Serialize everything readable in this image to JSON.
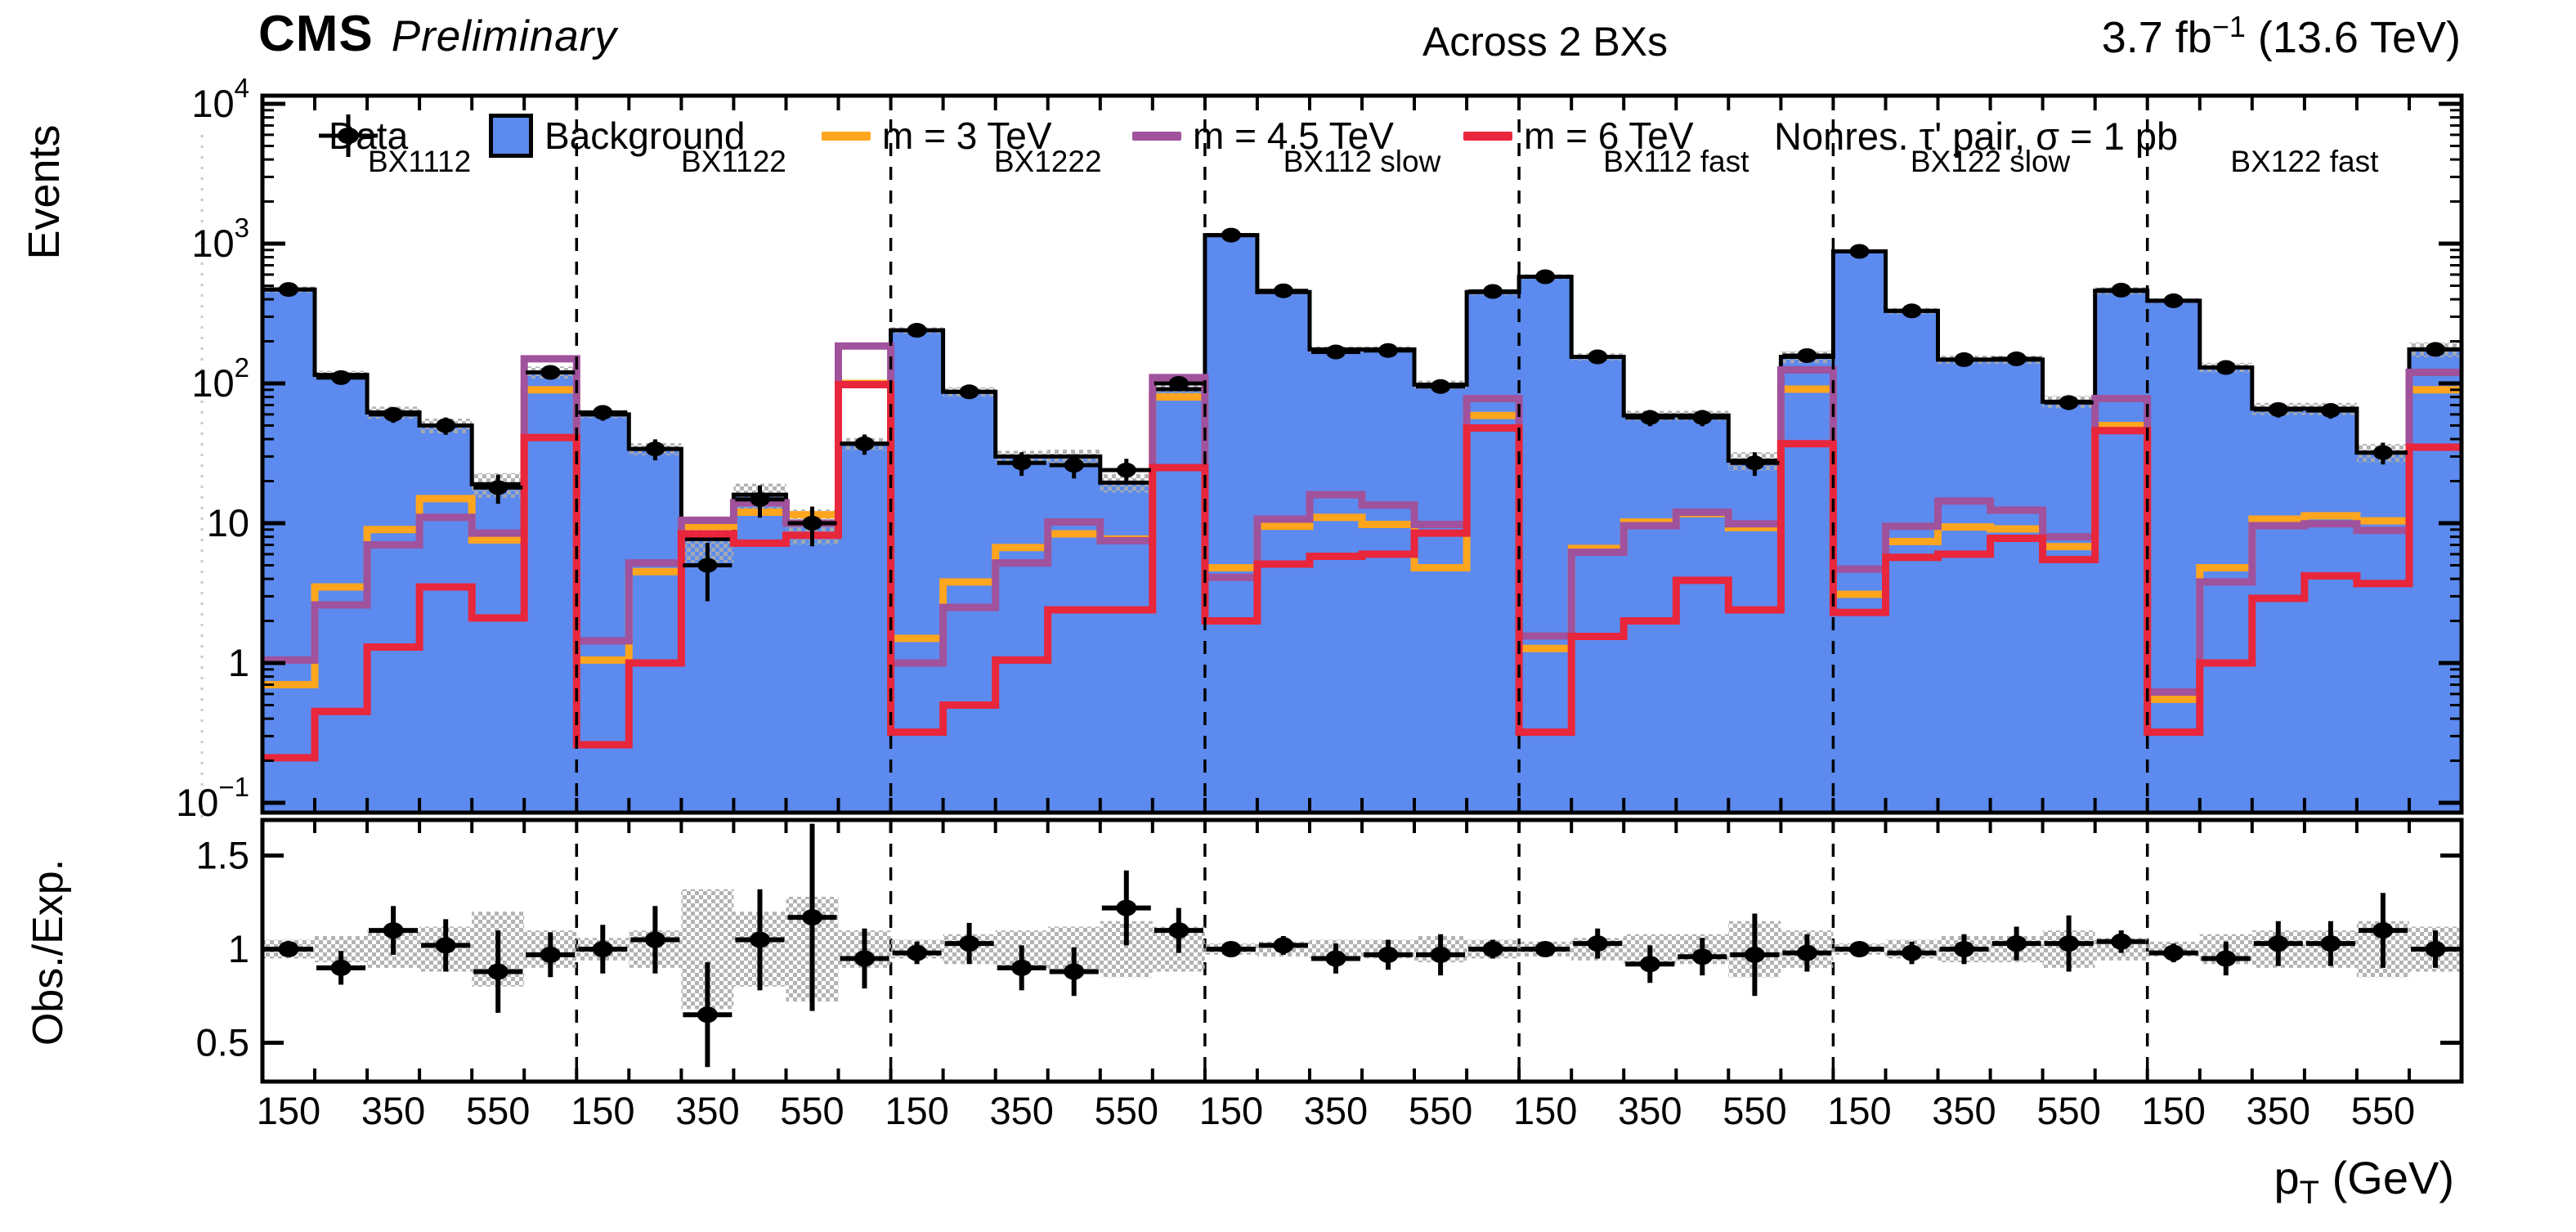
{
  "header": {
    "experiment": "CMS",
    "preliminary": "Preliminary",
    "center": "Across 2 BXs",
    "lumi_value": "3.7 fb",
    "lumi_exponent": "−1",
    "energy": " (13.6 TeV)"
  },
  "axes": {
    "y_label": "Events",
    "ratio_label": "Obs./Exp.",
    "x_label_p": "p",
    "x_label_sub": "T",
    "x_label_units": " (GeV)",
    "x_tick_labels": [
      "150",
      "350",
      "550"
    ],
    "y_tick_exponents": [
      4,
      3,
      2,
      1,
      0,
      -1
    ],
    "ratio_tick_values": [
      1.5,
      1.0,
      0.5
    ],
    "ratio_tick_labels": [
      "1.5",
      "1",
      "0.5"
    ]
  },
  "legend": {
    "data": "Data",
    "background": "Background",
    "m3": "m = 3 TeV",
    "m45": "m = 4.5 TeV",
    "m6": "m = 6 TeV",
    "note": "Nonres. τ' pair, σ = 1 pb"
  },
  "colors": {
    "background_fill": "#5C8AEE",
    "m3": "#FFA51E",
    "m45": "#A0529C",
    "m6": "#E8263C",
    "hatch": "#ABABAB",
    "marker": "#000000"
  },
  "chart_data": {
    "type": "bar",
    "subtype": "stepped histograms on log-y with signal overlays and ratio panel",
    "title": "Across 2 BXs",
    "xlabel": "pT (GeV)",
    "ylabel": "Events",
    "ratio_ylabel": "Obs./Exp.",
    "ylim_main": [
      0.086,
      11400
    ],
    "ylim_ratio": [
      0.28,
      1.68
    ],
    "x_bin_edges_gev": [
      100,
      200,
      300,
      400,
      500,
      600,
      700
    ],
    "series_names": [
      "Data",
      "Background",
      "m = 3 TeV",
      "m = 4.5 TeV",
      "m = 6 TeV"
    ],
    "regions": [
      {
        "label": "BX1112",
        "background": [
          470,
          115,
          62,
          50,
          19,
          120
        ],
        "data": [
          470,
          110,
          60,
          50,
          18,
          120
        ],
        "m3": [
          0.7,
          3.5,
          9,
          15,
          7.6,
          90
        ],
        "m45": [
          1.05,
          2.6,
          7,
          11,
          8.5,
          150
        ],
        "m6": [
          0.21,
          0.45,
          1.3,
          3.5,
          2.1,
          41
        ],
        "ratio": [
          1.0,
          0.9,
          1.1,
          1.02,
          0.88,
          0.97
        ],
        "ratio_err": [
          0.04,
          0.09,
          0.13,
          0.14,
          0.22,
          0.12
        ],
        "band_frac": [
          0.05,
          0.07,
          0.1,
          0.12,
          0.2,
          0.1
        ]
      },
      {
        "label": "BX1122",
        "background": [
          60,
          34,
          7.7,
          16,
          9.8,
          37
        ],
        "data": [
          62,
          34,
          5,
          14.8,
          10,
          37
        ],
        "m3": [
          1.05,
          4.5,
          9.5,
          12,
          11.5,
          100
        ],
        "m45": [
          1.44,
          5.2,
          10.5,
          14,
          10,
          185
        ],
        "m6": [
          0.26,
          1.0,
          8.4,
          7.2,
          8.2,
          98
        ],
        "ratio": [
          1.0,
          1.05,
          0.65,
          1.05,
          1.17,
          0.95
        ],
        "ratio_err": [
          0.13,
          0.18,
          0.28,
          0.27,
          0.5,
          0.16
        ],
        "band_frac": [
          0.06,
          0.1,
          0.32,
          0.2,
          0.28,
          0.1
        ]
      },
      {
        "label": "BX1222",
        "background": [
          240,
          87,
          30,
          30,
          19.5,
          91
        ],
        "data": [
          240,
          87,
          27,
          26,
          24,
          100
        ],
        "m3": [
          1.5,
          3.8,
          6.7,
          8.4,
          7.7,
          80
        ],
        "m45": [
          1.0,
          2.5,
          5.2,
          10.2,
          7.5,
          110
        ],
        "m6": [
          0.32,
          0.5,
          1.05,
          2.4,
          2.4,
          25
        ],
        "ratio": [
          0.98,
          1.03,
          0.9,
          0.88,
          1.22,
          1.1
        ],
        "ratio_err": [
          0.06,
          0.11,
          0.12,
          0.13,
          0.2,
          0.12
        ],
        "band_frac": [
          0.05,
          0.08,
          0.1,
          0.12,
          0.15,
          0.12
        ]
      },
      {
        "label": "BX112 slow",
        "background": [
          1150,
          450,
          175,
          175,
          98,
          450
        ],
        "data": [
          1150,
          460,
          168,
          172,
          95,
          455
        ],
        "m3": [
          4.8,
          9.5,
          11,
          9.8,
          4.8,
          59
        ],
        "m45": [
          4.1,
          10.7,
          16,
          13.5,
          9.8,
          78
        ],
        "m6": [
          2.0,
          5.1,
          5.8,
          6.0,
          8.5,
          48
        ],
        "ratio": [
          1.0,
          1.02,
          0.95,
          0.97,
          0.97,
          1.0
        ],
        "ratio_err": [
          0.03,
          0.05,
          0.08,
          0.08,
          0.11,
          0.05
        ],
        "band_frac": [
          0.03,
          0.04,
          0.05,
          0.05,
          0.07,
          0.05
        ]
      },
      {
        "label": "BX112 fast",
        "background": [
          580,
          155,
          59,
          59,
          28,
          155
        ],
        "data": [
          580,
          155,
          57,
          57,
          27,
          158
        ],
        "m3": [
          1.27,
          6.6,
          10.2,
          11.7,
          9.3,
          91
        ],
        "m45": [
          1.56,
          6.2,
          9.6,
          12,
          9.9,
          125
        ],
        "m6": [
          0.32,
          1.55,
          2.0,
          3.9,
          2.4,
          37
        ],
        "ratio": [
          1.0,
          1.03,
          0.92,
          0.96,
          0.97,
          0.98
        ],
        "ratio_err": [
          0.04,
          0.08,
          0.1,
          0.1,
          0.22,
          0.1
        ],
        "band_frac": [
          0.04,
          0.06,
          0.08,
          0.08,
          0.15,
          0.1
        ]
      },
      {
        "label": "BX122 slow",
        "background": [
          880,
          330,
          148,
          148,
          74,
          460
        ],
        "data": [
          880,
          330,
          148,
          150,
          73,
          465
        ],
        "m3": [
          3.1,
          7.4,
          9.4,
          9.1,
          6.8,
          50
        ],
        "m45": [
          4.7,
          9.5,
          14.4,
          12.4,
          8.0,
          78
        ],
        "m6": [
          2.3,
          5.7,
          6.0,
          7.8,
          5.5,
          46
        ],
        "ratio": [
          1.0,
          0.98,
          1.0,
          1.03,
          1.03,
          1.04
        ],
        "ratio_err": [
          0.03,
          0.06,
          0.08,
          0.09,
          0.15,
          0.06
        ],
        "band_frac": [
          0.03,
          0.05,
          0.07,
          0.07,
          0.1,
          0.06
        ]
      },
      {
        "label": "BX122 fast",
        "background": [
          390,
          130,
          66,
          66,
          32,
          175
        ],
        "data": [
          390,
          130,
          65,
          64,
          32,
          175
        ],
        "m3": [
          0.55,
          4.8,
          10.7,
          11.3,
          10.4,
          90
        ],
        "m45": [
          0.62,
          3.8,
          9.6,
          9.9,
          8.9,
          120
        ],
        "m6": [
          0.32,
          1.0,
          2.9,
          4.2,
          3.7,
          35
        ],
        "ratio": [
          0.98,
          0.95,
          1.03,
          1.03,
          1.1,
          1.0
        ],
        "ratio_err": [
          0.05,
          0.09,
          0.12,
          0.12,
          0.2,
          0.1
        ],
        "band_frac": [
          0.04,
          0.08,
          0.1,
          0.1,
          0.15,
          0.12
        ]
      }
    ],
    "legend_position": "top inside plot",
    "grid": false
  }
}
